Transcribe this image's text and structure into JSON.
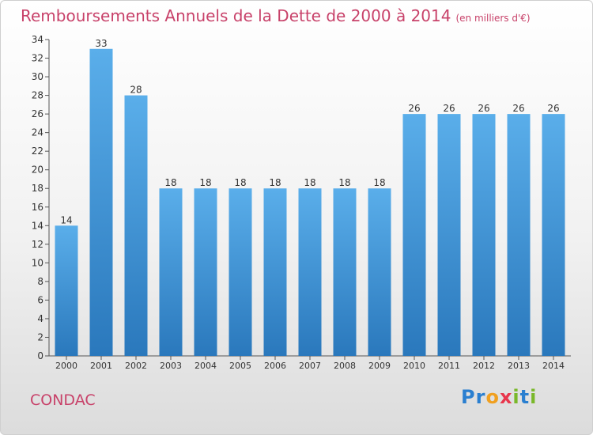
{
  "title": "Remboursements Annuels de la Dette de 2000 à 2014",
  "unit": "(en milliers d'€)",
  "commune": "CONDAC",
  "brand": {
    "letters": [
      "P",
      "r",
      "o",
      "x",
      "i",
      "t",
      "i"
    ],
    "colors": [
      "#2a7fd0",
      "#2a7fd0",
      "#f0a020",
      "#e8364c",
      "#7ab82a",
      "#2a7fd0",
      "#7ab82a"
    ]
  },
  "chart_data": {
    "type": "bar",
    "categories": [
      "2000",
      "2001",
      "2002",
      "2003",
      "2004",
      "2005",
      "2006",
      "2007",
      "2008",
      "2009",
      "2010",
      "2011",
      "2012",
      "2013",
      "2014"
    ],
    "values": [
      14,
      33,
      28,
      18,
      18,
      18,
      18,
      18,
      18,
      18,
      26,
      26,
      26,
      26,
      26
    ],
    "data_labels": [
      "14",
      "33",
      "28",
      "18",
      "18",
      "18",
      "18",
      "18",
      "18",
      "18",
      "26",
      "26",
      "26",
      "26",
      "26"
    ],
    "ylim": [
      0,
      34
    ],
    "yticks": [
      "0",
      "2",
      "4",
      "6",
      "8",
      "10",
      "12",
      "14",
      "16",
      "18",
      "20",
      "22",
      "24",
      "26",
      "28",
      "30",
      "32",
      "34"
    ],
    "grid": false,
    "bar_color": "#4a9fe0"
  }
}
